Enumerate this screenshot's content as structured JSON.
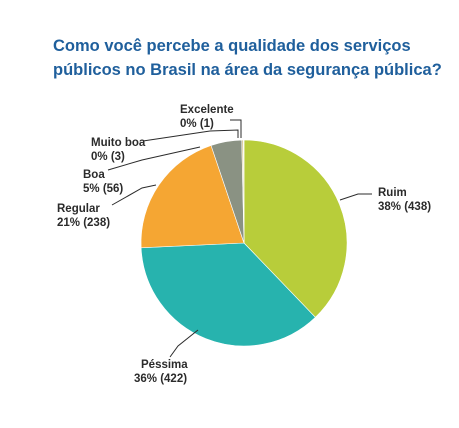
{
  "chart_data": {
    "type": "pie",
    "title_lines": [
      "Como você percebe a qualidade dos serviços",
      "públicos no Brasil na área da segurança pública?"
    ],
    "slices": [
      {
        "name": "Ruim",
        "label": "Ruim",
        "value_label": "38% (438)",
        "count": 438,
        "percent": 38,
        "color": "#b8cd3a"
      },
      {
        "name": "Péssima",
        "label": "Péssima",
        "value_label": "36% (422)",
        "count": 422,
        "percent": 36,
        "color": "#27b3ae"
      },
      {
        "name": "Regular",
        "label": "Regular",
        "value_label": "21% (238)",
        "count": 238,
        "percent": 21,
        "color": "#f5a633"
      },
      {
        "name": "Boa",
        "label": "Boa",
        "value_label": "5% (56)",
        "count": 56,
        "percent": 5,
        "color": "#8a9283"
      },
      {
        "name": "Muito boa",
        "label": "Muito boa",
        "value_label": "0% (3)",
        "count": 3,
        "percent": 0,
        "color": "#d9c89a"
      },
      {
        "name": "Excelente",
        "label": "Excelente",
        "value_label": "0% (1)",
        "count": 1,
        "percent": 0,
        "color": "#b9c4cf"
      }
    ],
    "start_angle": "12 o'clock",
    "direction": "clockwise",
    "legend": "none"
  }
}
